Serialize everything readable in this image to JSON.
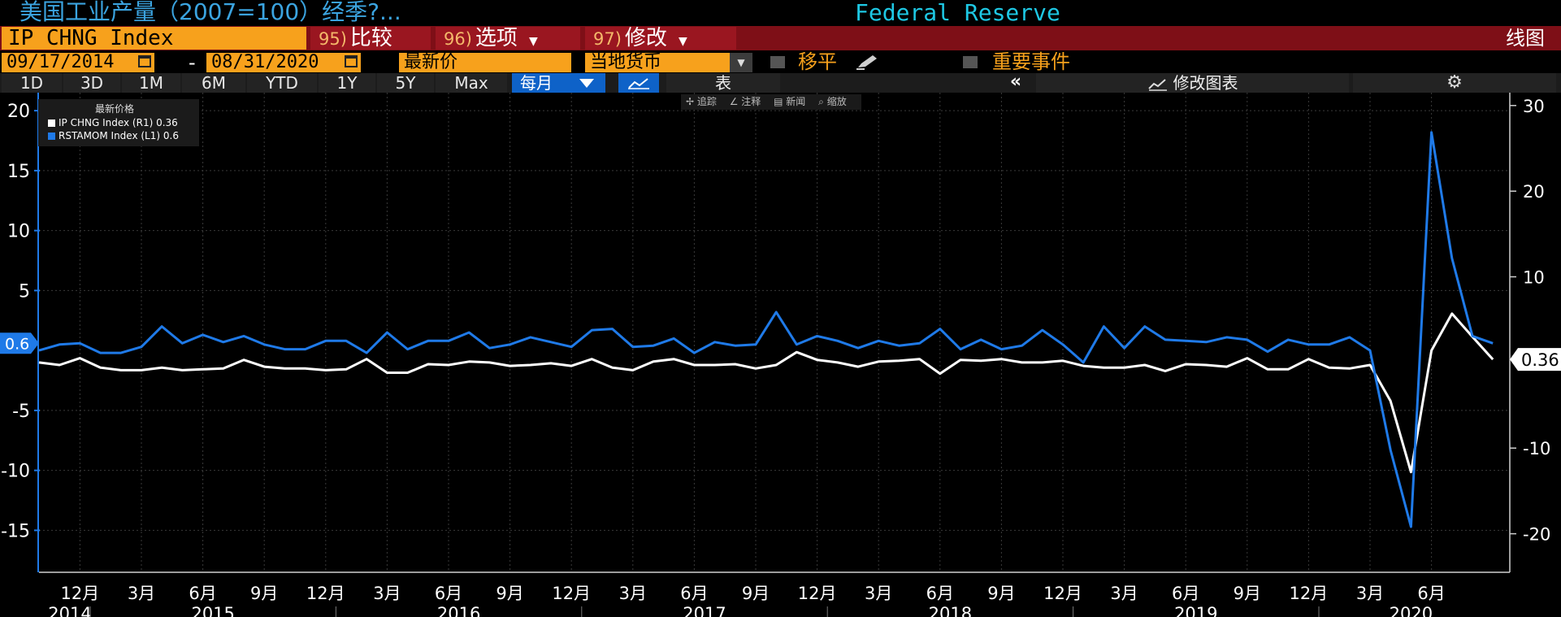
{
  "header": {
    "title": "美国工业产量（2007=100）经季?...",
    "source": "Federal Reserve"
  },
  "toolbar": {
    "ticker": "IP CHNG Index",
    "compare": {
      "num": "95)",
      "label": "比较"
    },
    "options": {
      "num": "96)",
      "label": "选项"
    },
    "modify": {
      "num": "97)",
      "label": "修改"
    },
    "chart_type": "线图"
  },
  "controls": {
    "date_start": "09/17/2014",
    "date_sep": "-",
    "date_end": "08/31/2020",
    "price_field": "最新价",
    "currency": "当地货币",
    "moving_avg_label": "移平",
    "events_label": "重要事件"
  },
  "periods": [
    "1D",
    "3D",
    "1M",
    "6M",
    "YTD",
    "1Y",
    "5Y",
    "Max"
  ],
  "frequency": "每月",
  "table_label": "表",
  "collapse": "«",
  "modify_chart": "修改图表",
  "settings_glyph": "⚙",
  "chart_tools": [
    "追踪",
    "注释",
    "新闻",
    "缩放"
  ],
  "legend": {
    "title": "最新价格",
    "items": [
      {
        "label": "IP CHNG Index  (R1)  0.36",
        "color": "#ffffff"
      },
      {
        "label": "RSTAMOM Index  (L1) 0.6",
        "color": "#1f7ae8"
      }
    ]
  },
  "colors": {
    "ip_line": "#ffffff",
    "rsta_line": "#1f7ae8",
    "grid": "#3a3a3a",
    "left_axis": "#1f7ae8",
    "accent_orange": "#f7a11c",
    "title_blue": "#3ba4e0"
  },
  "chart_data": {
    "type": "line",
    "start_month": "2014-10",
    "x_tick_labels": [
      "12月",
      "3月",
      "6月",
      "9月",
      "12月",
      "3月",
      "6月",
      "9月",
      "12月",
      "3月",
      "6月",
      "9月",
      "12月",
      "3月",
      "6月",
      "9月",
      "12月",
      "3月",
      "6月",
      "9月",
      "12月",
      "3月",
      "6月"
    ],
    "year_labels": [
      "2014",
      "2015",
      "2016",
      "2017",
      "2018",
      "2019",
      "2020"
    ],
    "left_axis": {
      "ticks": [
        20,
        15,
        10,
        5,
        -5,
        -10,
        -15
      ],
      "ylim": [
        -18.5,
        21.5
      ],
      "last_value_label": "0.6"
    },
    "right_axis": {
      "ticks": [
        30,
        20,
        10,
        -10,
        -20
      ],
      "ylim": [
        -24.5,
        31.5
      ],
      "last_value_label": "0.36"
    },
    "series": [
      {
        "name": "IP CHNG Index",
        "axis": "right",
        "values": [
          0.0,
          -0.3,
          0.5,
          -0.6,
          -0.9,
          -0.9,
          -0.6,
          -0.9,
          -0.8,
          -0.7,
          0.3,
          -0.5,
          -0.7,
          -0.7,
          -0.9,
          -0.8,
          0.4,
          -1.2,
          -1.2,
          -0.2,
          -0.3,
          0.1,
          0.0,
          -0.4,
          -0.3,
          -0.1,
          -0.4,
          0.4,
          -0.6,
          -0.9,
          0.1,
          0.4,
          -0.3,
          -0.3,
          -0.2,
          -0.7,
          -0.3,
          1.2,
          0.3,
          0.0,
          -0.5,
          0.1,
          0.2,
          0.4,
          -1.3,
          0.3,
          0.2,
          0.4,
          0.0,
          0.0,
          0.2,
          -0.4,
          -0.6,
          -0.6,
          -0.3,
          -1.0,
          -0.2,
          -0.3,
          -0.5,
          0.5,
          -0.8,
          -0.8,
          0.4,
          -0.6,
          -0.7,
          -0.3,
          -4.5,
          -12.8,
          1.4,
          5.7,
          3.0,
          0.36
        ]
      },
      {
        "name": "RSTAMOM Index",
        "axis": "left",
        "values": [
          0.0,
          0.5,
          0.6,
          -0.2,
          -0.2,
          0.3,
          2.0,
          0.6,
          1.3,
          0.7,
          1.2,
          0.5,
          0.1,
          0.1,
          0.8,
          0.8,
          -0.2,
          1.5,
          0.1,
          0.8,
          0.8,
          1.5,
          0.2,
          0.5,
          1.1,
          0.7,
          0.3,
          1.7,
          1.8,
          0.3,
          0.4,
          1.0,
          -0.2,
          0.7,
          0.4,
          0.5,
          3.2,
          0.5,
          1.2,
          0.8,
          0.2,
          0.8,
          0.4,
          0.6,
          1.8,
          0.1,
          0.9,
          0.1,
          0.4,
          1.7,
          0.5,
          -1.0,
          2.0,
          0.2,
          2.0,
          0.9,
          0.8,
          0.7,
          1.1,
          0.9,
          -0.1,
          0.9,
          0.5,
          0.5,
          1.1,
          0.0,
          -8.3,
          -14.7,
          18.2,
          7.7,
          1.2,
          0.6
        ]
      }
    ]
  }
}
